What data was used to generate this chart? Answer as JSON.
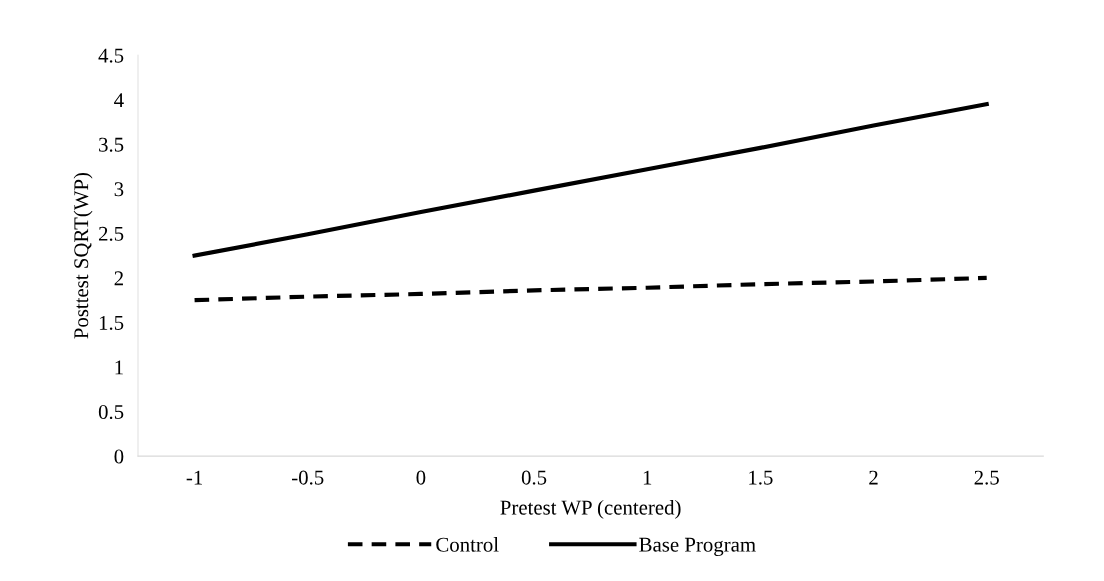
{
  "chart_data": {
    "type": "line",
    "xlabel": "Pretest WP (centered)",
    "ylabel": "Posttest SQRT(WP)",
    "categories": [
      "-1",
      "-0.5",
      "0",
      "0.5",
      "1",
      "1.5",
      "2",
      "2.5"
    ],
    "series": [
      {
        "name": "Control",
        "color": "#000000",
        "line_style": "dashed",
        "values": [
          1.75,
          1.79,
          1.82,
          1.86,
          1.89,
          1.93,
          1.96,
          2.0
        ]
      },
      {
        "name": "Base Program",
        "color": "#000000",
        "line_style": "solid",
        "values": [
          2.25,
          2.49,
          2.74,
          2.98,
          3.22,
          3.46,
          3.71,
          3.95
        ]
      }
    ],
    "ylim": [
      0,
      4.5
    ],
    "yticks": [
      0,
      0.5,
      1,
      1.5,
      2,
      2.5,
      3,
      3.5,
      4,
      4.5
    ],
    "grid": false,
    "legend": "bottom",
    "marker": "none"
  }
}
